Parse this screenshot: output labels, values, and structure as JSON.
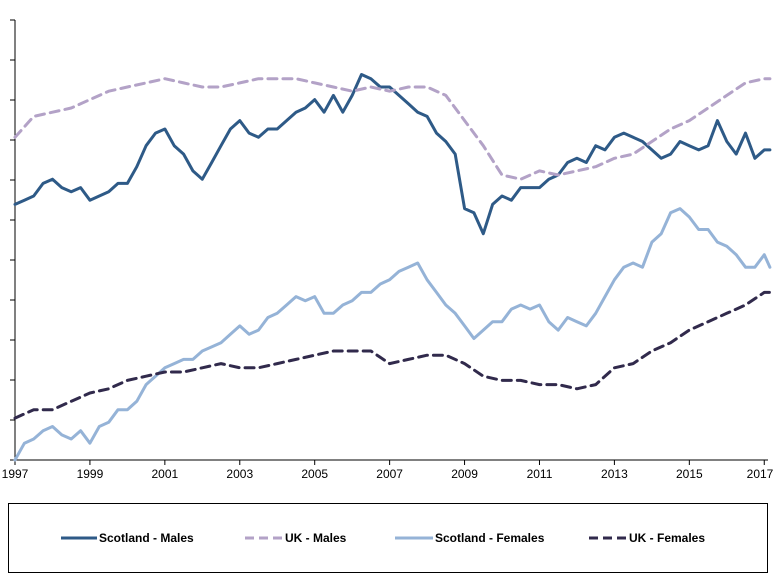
{
  "chart_data": {
    "type": "line",
    "title": "",
    "xlabel": "",
    "ylabel": "",
    "xlim": [
      1997,
      2017.1
    ],
    "ylim": [
      0,
      10.5
    ],
    "x_tick_labels": [
      "1997",
      "1999",
      "2001",
      "2003",
      "2005",
      "2007",
      "2009",
      "2011",
      "2013",
      "2015",
      "2017"
    ],
    "x_tick_values": [
      1997,
      1999,
      2001,
      2003,
      2005,
      2007,
      2009,
      2011,
      2013,
      2015,
      2017
    ],
    "y_tick_count": 11,
    "y_tick_labels_shown": false,
    "grid": false,
    "legend_position": "bottom",
    "series": [
      {
        "name": "Scotland - Males",
        "color": "#2e5a87",
        "dash": "solid",
        "x": [
          1997.0,
          1997.25,
          1997.5,
          1997.75,
          1998.0,
          1998.25,
          1998.5,
          1998.75,
          1999.0,
          1999.25,
          1999.5,
          1999.75,
          2000.0,
          2000.25,
          2000.5,
          2000.75,
          2001.0,
          2001.25,
          2001.5,
          2001.75,
          2002.0,
          2002.25,
          2002.5,
          2002.75,
          2003.0,
          2003.25,
          2003.5,
          2003.75,
          2004.0,
          2004.25,
          2004.5,
          2004.75,
          2005.0,
          2005.25,
          2005.5,
          2005.75,
          2006.0,
          2006.25,
          2006.5,
          2006.75,
          2007.0,
          2007.25,
          2007.5,
          2007.75,
          2008.0,
          2008.25,
          2008.5,
          2008.75,
          2009.0,
          2009.25,
          2009.5,
          2009.75,
          2010.0,
          2010.25,
          2010.5,
          2010.75,
          2011.0,
          2011.25,
          2011.5,
          2011.75,
          2012.0,
          2012.25,
          2012.5,
          2012.75,
          2013.0,
          2013.25,
          2013.5,
          2013.75,
          2014.0,
          2014.25,
          2014.5,
          2014.75,
          2015.0,
          2015.25,
          2015.5,
          2015.75,
          2016.0,
          2016.25,
          2016.5,
          2016.75,
          2017.0,
          2017.15
        ],
        "values": [
          6.1,
          6.2,
          6.3,
          6.6,
          6.7,
          6.5,
          6.4,
          6.5,
          6.2,
          6.3,
          6.4,
          6.6,
          6.6,
          7.0,
          7.5,
          7.8,
          7.9,
          7.5,
          7.3,
          6.9,
          6.7,
          7.1,
          7.5,
          7.9,
          8.1,
          7.8,
          7.7,
          7.9,
          7.9,
          8.1,
          8.3,
          8.4,
          8.6,
          8.3,
          8.7,
          8.3,
          8.7,
          9.2,
          9.1,
          8.9,
          8.9,
          8.7,
          8.5,
          8.3,
          8.2,
          7.8,
          7.6,
          7.3,
          6.0,
          5.9,
          5.4,
          6.1,
          6.3,
          6.2,
          6.5,
          6.5,
          6.5,
          6.7,
          6.8,
          7.1,
          7.2,
          7.1,
          7.5,
          7.4,
          7.7,
          7.8,
          7.7,
          7.6,
          7.4,
          7.2,
          7.3,
          7.6,
          7.5,
          7.4,
          7.5,
          8.1,
          7.6,
          7.3,
          7.8,
          7.2,
          7.4,
          7.4
        ]
      },
      {
        "name": "UK - Males",
        "color": "#b3a2c7",
        "dash": "dashed",
        "x": [
          1997.0,
          1997.5,
          1998.0,
          1998.5,
          1999.0,
          1999.5,
          2000.0,
          2000.5,
          2001.0,
          2001.5,
          2002.0,
          2002.5,
          2003.0,
          2003.5,
          2004.0,
          2004.5,
          2005.0,
          2005.5,
          2006.0,
          2006.5,
          2007.0,
          2007.5,
          2008.0,
          2008.5,
          2009.0,
          2009.5,
          2010.0,
          2010.5,
          2011.0,
          2011.5,
          2012.0,
          2012.5,
          2013.0,
          2013.5,
          2014.0,
          2014.5,
          2015.0,
          2015.5,
          2016.0,
          2016.5,
          2017.0,
          2017.15
        ],
        "values": [
          7.7,
          8.2,
          8.3,
          8.4,
          8.6,
          8.8,
          8.9,
          9.0,
          9.1,
          9.0,
          8.9,
          8.9,
          9.0,
          9.1,
          9.1,
          9.1,
          9.0,
          8.9,
          8.8,
          8.9,
          8.8,
          8.9,
          8.9,
          8.7,
          8.1,
          7.5,
          6.8,
          6.7,
          6.9,
          6.8,
          6.9,
          7.0,
          7.2,
          7.3,
          7.6,
          7.9,
          8.1,
          8.4,
          8.7,
          9.0,
          9.1,
          9.1
        ]
      },
      {
        "name": "Scotland - Females",
        "color": "#95b3d7",
        "dash": "solid",
        "x": [
          1997.0,
          1997.25,
          1997.5,
          1997.75,
          1998.0,
          1998.25,
          1998.5,
          1998.75,
          1999.0,
          1999.25,
          1999.5,
          1999.75,
          2000.0,
          2000.25,
          2000.5,
          2000.75,
          2001.0,
          2001.25,
          2001.5,
          2001.75,
          2002.0,
          2002.25,
          2002.5,
          2002.75,
          2003.0,
          2003.25,
          2003.5,
          2003.75,
          2004.0,
          2004.25,
          2004.5,
          2004.75,
          2005.0,
          2005.25,
          2005.5,
          2005.75,
          2006.0,
          2006.25,
          2006.5,
          2006.75,
          2007.0,
          2007.25,
          2007.5,
          2007.75,
          2008.0,
          2008.25,
          2008.5,
          2008.75,
          2009.0,
          2009.25,
          2009.5,
          2009.75,
          2010.0,
          2010.25,
          2010.5,
          2010.75,
          2011.0,
          2011.25,
          2011.5,
          2011.75,
          2012.0,
          2012.25,
          2012.5,
          2012.75,
          2013.0,
          2013.25,
          2013.5,
          2013.75,
          2014.0,
          2014.25,
          2014.5,
          2014.75,
          2015.0,
          2015.25,
          2015.5,
          2015.75,
          2016.0,
          2016.25,
          2016.5,
          2016.75,
          2017.0,
          2017.15
        ],
        "values": [
          0.0,
          0.4,
          0.5,
          0.7,
          0.8,
          0.6,
          0.5,
          0.7,
          0.4,
          0.8,
          0.9,
          1.2,
          1.2,
          1.4,
          1.8,
          2.0,
          2.2,
          2.3,
          2.4,
          2.4,
          2.6,
          2.7,
          2.8,
          3.0,
          3.2,
          3.0,
          3.1,
          3.4,
          3.5,
          3.7,
          3.9,
          3.8,
          3.9,
          3.5,
          3.5,
          3.7,
          3.8,
          4.0,
          4.0,
          4.2,
          4.3,
          4.5,
          4.6,
          4.7,
          4.3,
          4.0,
          3.7,
          3.5,
          3.2,
          2.9,
          3.1,
          3.3,
          3.3,
          3.6,
          3.7,
          3.6,
          3.7,
          3.3,
          3.1,
          3.4,
          3.3,
          3.2,
          3.5,
          3.9,
          4.3,
          4.6,
          4.7,
          4.6,
          5.2,
          5.4,
          5.9,
          6.0,
          5.8,
          5.5,
          5.5,
          5.2,
          5.1,
          4.9,
          4.6,
          4.6,
          4.9,
          4.6
        ]
      },
      {
        "name": "UK - Females",
        "color": "#312a4c",
        "dash": "dashed",
        "x": [
          1997.0,
          1997.5,
          1998.0,
          1998.5,
          1999.0,
          1999.5,
          2000.0,
          2000.5,
          2001.0,
          2001.5,
          2002.0,
          2002.5,
          2003.0,
          2003.5,
          2004.0,
          2004.5,
          2005.0,
          2005.5,
          2006.0,
          2006.5,
          2007.0,
          2007.5,
          2008.0,
          2008.5,
          2009.0,
          2009.5,
          2010.0,
          2010.5,
          2011.0,
          2011.5,
          2012.0,
          2012.5,
          2013.0,
          2013.5,
          2014.0,
          2014.5,
          2015.0,
          2015.5,
          2016.0,
          2016.5,
          2017.0,
          2017.15
        ],
        "values": [
          1.0,
          1.2,
          1.2,
          1.4,
          1.6,
          1.7,
          1.9,
          2.0,
          2.1,
          2.1,
          2.2,
          2.3,
          2.2,
          2.2,
          2.3,
          2.4,
          2.5,
          2.6,
          2.6,
          2.6,
          2.3,
          2.4,
          2.5,
          2.5,
          2.3,
          2.0,
          1.9,
          1.9,
          1.8,
          1.8,
          1.7,
          1.8,
          2.2,
          2.3,
          2.6,
          2.8,
          3.1,
          3.3,
          3.5,
          3.7,
          4.0,
          4.0
        ]
      }
    ]
  }
}
